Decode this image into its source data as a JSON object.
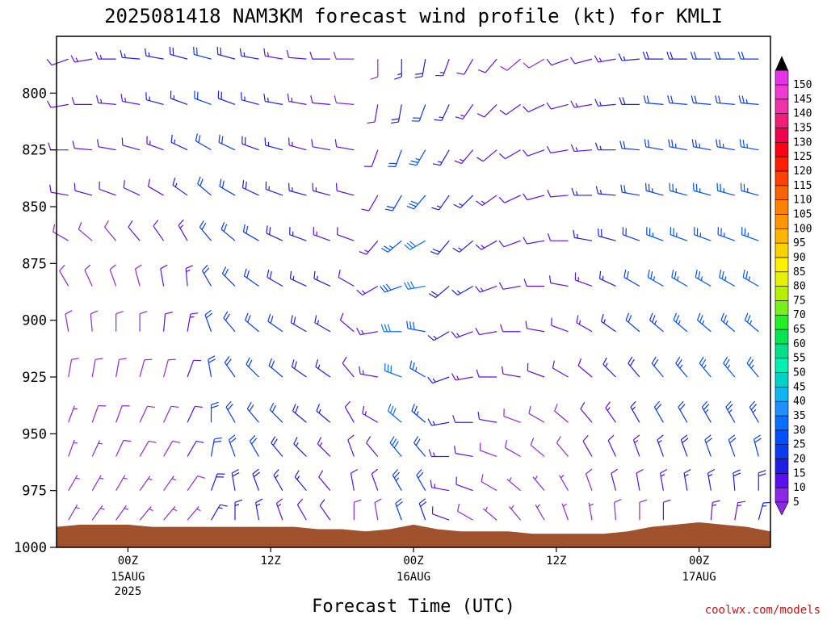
{
  "chart_data": {
    "type": "wind-profile",
    "title": "2025081418 NAM3KM forecast wind profile (kt) for KMLI",
    "xlabel": "Forecast Time (UTC)",
    "credit": "coolwx.com/models",
    "y_levels_hPa": [
      800,
      825,
      850,
      875,
      900,
      925,
      950,
      975,
      1000
    ],
    "ylim": [
      775,
      1000
    ],
    "x_ticks": [
      {
        "label": "00Z",
        "date": "15AUG",
        "year": "2025",
        "hour": 6
      },
      {
        "label": "12Z",
        "date": "",
        "year": "",
        "hour": 18
      },
      {
        "label": "00Z",
        "date": "16AUG",
        "year": "",
        "hour": 30
      },
      {
        "label": "12Z",
        "date": "",
        "year": "",
        "hour": 42
      },
      {
        "label": "00Z",
        "date": "17AUG",
        "year": "",
        "hour": 54
      }
    ],
    "x_range_hours": [
      0,
      60
    ],
    "colorbar": {
      "levels": [
        5,
        10,
        15,
        20,
        25,
        30,
        35,
        40,
        45,
        50,
        55,
        60,
        65,
        70,
        75,
        80,
        85,
        90,
        95,
        100,
        105,
        110,
        115,
        120,
        125,
        130,
        135,
        140,
        145,
        150
      ],
      "colors": [
        "#8c28e6",
        "#5a0ff0",
        "#1e1ee6",
        "#0a3cf0",
        "#0050ff",
        "#0a6eff",
        "#1e90ff",
        "#10b4f0",
        "#00d2c8",
        "#00f0b4",
        "#00e08c",
        "#00e650",
        "#22f022",
        "#78f01e",
        "#b4f000",
        "#e6f000",
        "#fff000",
        "#fad200",
        "#ffb400",
        "#ff9600",
        "#ff8200",
        "#f56400",
        "#ff4000",
        "#ff1e00",
        "#ff0014",
        "#f00050",
        "#f01e78",
        "#f032aa",
        "#f03cd2",
        "#e632e6"
      ],
      "top_color": "#000000",
      "bottom_color": "#8c28e6"
    },
    "terrain_color": "#a0522d",
    "series": [
      {
        "x_hours": [
          0,
          2,
          4,
          6,
          8,
          10,
          12,
          14,
          16,
          18,
          20,
          22,
          24,
          26,
          28,
          30,
          32,
          34,
          36,
          38,
          40,
          42,
          44,
          46,
          48,
          50,
          52,
          54,
          56,
          58,
          60
        ],
        "lowest_level_hPa": [
          991,
          990,
          990,
          990,
          991,
          991,
          991,
          991,
          991,
          991,
          991,
          992,
          992,
          993,
          992,
          990,
          992,
          993,
          993,
          993,
          994,
          994,
          994,
          994,
          993,
          991,
          990,
          989,
          990,
          991,
          993
        ]
      }
    ],
    "wind_columns": [
      {
        "x": 1,
        "dir": [
          250,
          260,
          270,
          280,
          300,
          330,
          350,
          10,
          20,
          20,
          30,
          30
        ],
        "spd": [
          12,
          12,
          11,
          10,
          9,
          8,
          8,
          8,
          7,
          7,
          6,
          6
        ]
      },
      {
        "x": 3,
        "dir": [
          260,
          270,
          275,
          285,
          310,
          335,
          355,
          10,
          20,
          25,
          30,
          35
        ],
        "spd": [
          13,
          12,
          11,
          10,
          9,
          9,
          8,
          8,
          8,
          7,
          7,
          6
        ]
      },
      {
        "x": 5,
        "dir": [
          270,
          275,
          280,
          290,
          320,
          340,
          0,
          10,
          20,
          25,
          30,
          35
        ],
        "spd": [
          14,
          13,
          12,
          10,
          9,
          9,
          9,
          8,
          8,
          8,
          7,
          6
        ]
      },
      {
        "x": 7,
        "dir": [
          275,
          280,
          285,
          295,
          320,
          345,
          0,
          15,
          25,
          30,
          35,
          40
        ],
        "spd": [
          15,
          14,
          12,
          11,
          10,
          9,
          9,
          9,
          8,
          8,
          7,
          6
        ]
      },
      {
        "x": 9,
        "dir": [
          280,
          285,
          290,
          300,
          325,
          350,
          5,
          15,
          25,
          30,
          35,
          40
        ],
        "spd": [
          16,
          15,
          13,
          12,
          11,
          10,
          10,
          9,
          9,
          8,
          7,
          6
        ]
      },
      {
        "x": 11,
        "dir": [
          285,
          290,
          295,
          305,
          330,
          355,
          10,
          20,
          25,
          30,
          35,
          40
        ],
        "spd": [
          18,
          17,
          16,
          15,
          14,
          14,
          13,
          12,
          11,
          10,
          9,
          7
        ]
      },
      {
        "x": 13,
        "dir": [
          285,
          290,
          300,
          310,
          320,
          330,
          340,
          350,
          0,
          10,
          20,
          30
        ],
        "spd": [
          20,
          20,
          20,
          20,
          20,
          21,
          22,
          22,
          22,
          20,
          18,
          15
        ]
      },
      {
        "x": 15,
        "dir": [
          285,
          290,
          295,
          300,
          310,
          315,
          320,
          325,
          330,
          340,
          350,
          0
        ],
        "spd": [
          18,
          19,
          20,
          20,
          21,
          22,
          22,
          22,
          22,
          21,
          19,
          16
        ]
      },
      {
        "x": 17,
        "dir": [
          280,
          285,
          290,
          295,
          300,
          305,
          310,
          315,
          320,
          330,
          340,
          350
        ],
        "spd": [
          16,
          17,
          18,
          19,
          20,
          21,
          21,
          21,
          21,
          20,
          18,
          15
        ]
      },
      {
        "x": 19,
        "dir": [
          280,
          280,
          285,
          290,
          295,
          300,
          305,
          310,
          315,
          320,
          330,
          340
        ],
        "spd": [
          14,
          15,
          16,
          17,
          18,
          19,
          20,
          20,
          20,
          19,
          17,
          14
        ]
      },
      {
        "x": 21,
        "dir": [
          275,
          280,
          285,
          285,
          290,
          295,
          300,
          305,
          310,
          315,
          320,
          330
        ],
        "spd": [
          12,
          13,
          14,
          15,
          16,
          17,
          18,
          18,
          18,
          17,
          15,
          12
        ]
      },
      {
        "x": 23,
        "dir": [
          270,
          275,
          280,
          285,
          290,
          295,
          300,
          305,
          310,
          315,
          320,
          325
        ],
        "spd": [
          10,
          11,
          12,
          13,
          14,
          15,
          15,
          15,
          15,
          14,
          12,
          10
        ]
      },
      {
        "x": 25,
        "dir": [
          270,
          275,
          280,
          285,
          290,
          300,
          310,
          320,
          330,
          340,
          350,
          0
        ],
        "spd": [
          8,
          9,
          10,
          11,
          12,
          12,
          12,
          12,
          12,
          11,
          10,
          8
        ]
      },
      {
        "x": 27,
        "dir": [
          180,
          190,
          200,
          210,
          220,
          240,
          260,
          280,
          300,
          320,
          340,
          350
        ],
        "spd": [
          9,
          10,
          11,
          12,
          13,
          14,
          14,
          14,
          13,
          12,
          10,
          8
        ]
      },
      {
        "x": 29,
        "dir": [
          180,
          190,
          200,
          210,
          230,
          250,
          270,
          290,
          310,
          320,
          330,
          340
        ],
        "spd": [
          15,
          18,
          20,
          22,
          25,
          28,
          30,
          32,
          30,
          28,
          24,
          20
        ]
      },
      {
        "x": 31,
        "dir": [
          190,
          200,
          210,
          220,
          240,
          260,
          280,
          300,
          310,
          320,
          330,
          340
        ],
        "spd": [
          18,
          22,
          25,
          28,
          30,
          30,
          28,
          26,
          24,
          22,
          20,
          18
        ]
      },
      {
        "x": 33,
        "dir": [
          200,
          205,
          210,
          215,
          220,
          230,
          240,
          250,
          260,
          270,
          280,
          290
        ],
        "spd": [
          14,
          15,
          16,
          17,
          18,
          18,
          17,
          16,
          15,
          14,
          13,
          12
        ]
      },
      {
        "x": 35,
        "dir": [
          210,
          215,
          220,
          225,
          230,
          240,
          250,
          260,
          270,
          280,
          290,
          300
        ],
        "spd": [
          12,
          13,
          14,
          15,
          15,
          15,
          14,
          13,
          12,
          11,
          10,
          9
        ]
      },
      {
        "x": 37,
        "dir": [
          220,
          225,
          230,
          235,
          240,
          250,
          260,
          270,
          280,
          290,
          300,
          310
        ],
        "spd": [
          10,
          11,
          12,
          13,
          13,
          13,
          12,
          11,
          10,
          9,
          8,
          7
        ]
      },
      {
        "x": 39,
        "dir": [
          230,
          235,
          240,
          245,
          250,
          260,
          270,
          280,
          290,
          300,
          310,
          320
        ],
        "spd": [
          9,
          10,
          11,
          11,
          12,
          12,
          11,
          10,
          9,
          8,
          7,
          6
        ]
      },
      {
        "x": 41,
        "dir": [
          240,
          245,
          250,
          255,
          260,
          270,
          280,
          290,
          300,
          310,
          320,
          330
        ],
        "spd": [
          9,
          10,
          10,
          11,
          11,
          11,
          10,
          10,
          9,
          8,
          7,
          6
        ]
      },
      {
        "x": 43,
        "dir": [
          250,
          255,
          260,
          265,
          270,
          280,
          290,
          300,
          310,
          320,
          330,
          340
        ],
        "spd": [
          10,
          11,
          12,
          12,
          12,
          12,
          11,
          10,
          9,
          8,
          7,
          6
        ]
      },
      {
        "x": 45,
        "dir": [
          255,
          260,
          265,
          270,
          280,
          290,
          300,
          310,
          320,
          330,
          340,
          350
        ],
        "spd": [
          12,
          13,
          14,
          15,
          15,
          14,
          13,
          12,
          11,
          10,
          8,
          6
        ]
      },
      {
        "x": 47,
        "dir": [
          260,
          265,
          270,
          275,
          285,
          295,
          305,
          315,
          325,
          335,
          345,
          355
        ],
        "spd": [
          14,
          15,
          16,
          17,
          18,
          17,
          16,
          15,
          14,
          12,
          10,
          8
        ]
      },
      {
        "x": 49,
        "dir": [
          265,
          270,
          275,
          280,
          290,
          300,
          310,
          320,
          330,
          340,
          350,
          0
        ],
        "spd": [
          16,
          18,
          20,
          21,
          22,
          22,
          20,
          18,
          16,
          14,
          12,
          9
        ]
      },
      {
        "x": 51,
        "dir": [
          270,
          275,
          280,
          285,
          290,
          300,
          310,
          320,
          330,
          340,
          350,
          0
        ],
        "spd": [
          18,
          20,
          22,
          24,
          25,
          25,
          24,
          22,
          20,
          17,
          14,
          10
        ]
      },
      {
        "x": 53,
        "dir": [
          270,
          275,
          280,
          285,
          290,
          300,
          310,
          320,
          330,
          340,
          350,
          5
        ],
        "spd": [
          19,
          21,
          23,
          25,
          26,
          27,
          26,
          24,
          22,
          19,
          16,
          12
        ]
      },
      {
        "x": 55,
        "dir": [
          270,
          275,
          280,
          285,
          290,
          300,
          310,
          320,
          330,
          340,
          350,
          5
        ],
        "spd": [
          20,
          22,
          24,
          26,
          27,
          27,
          26,
          25,
          23,
          20,
          17,
          13
        ]
      },
      {
        "x": 57,
        "dir": [
          270,
          275,
          280,
          285,
          290,
          300,
          310,
          320,
          330,
          340,
          355,
          10
        ],
        "spd": [
          20,
          22,
          24,
          26,
          27,
          27,
          26,
          25,
          23,
          21,
          18,
          14
        ]
      },
      {
        "x": 59,
        "dir": [
          270,
          275,
          280,
          285,
          290,
          300,
          310,
          320,
          330,
          345,
          0,
          15
        ],
        "spd": [
          21,
          23,
          25,
          26,
          27,
          27,
          26,
          25,
          24,
          22,
          19,
          15
        ]
      }
    ],
    "wind_levels_hPa": [
      785,
      805,
      825,
      845,
      865,
      885,
      905,
      925,
      945,
      960,
      975,
      988
    ]
  }
}
